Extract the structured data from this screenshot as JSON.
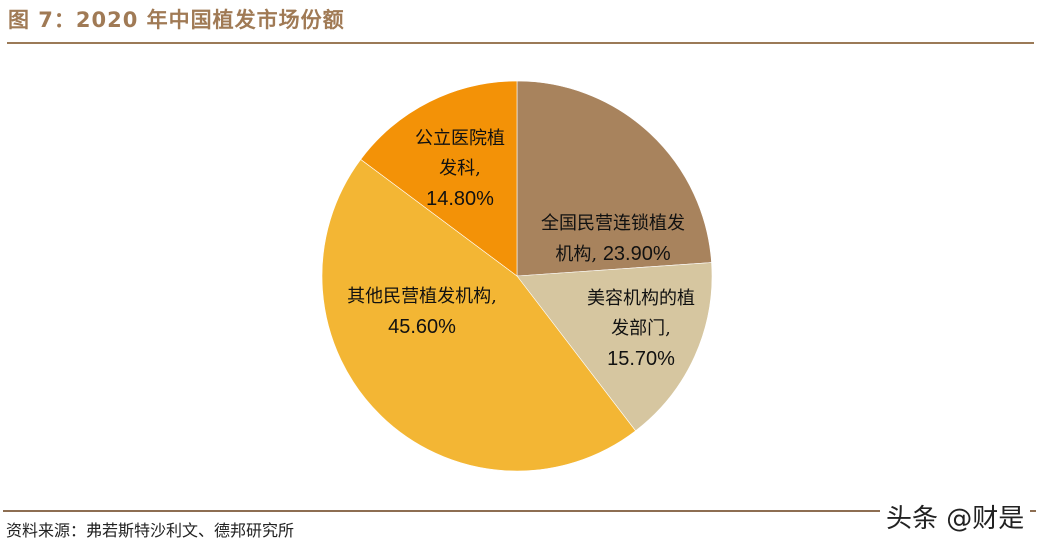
{
  "header": {
    "title": "图 7：2020 年中国植发市场份额"
  },
  "footer": {
    "source": "资料来源：弗若斯特沙利文、德邦研究所",
    "watermark": "头条 @财是"
  },
  "colors": {
    "accent": "#9b7a57",
    "slice_1": "#a8835d",
    "slice_2": "#d6c6a0",
    "slice_3": "#f3b634",
    "slice_4": "#f39207"
  },
  "chart_data": {
    "type": "pie",
    "title": "2020 年中国植发市场份额",
    "start_angle": "12 o'clock",
    "direction": "clockwise",
    "legend": "none (inline labels)",
    "categories": [
      "全国民营连锁植发机构",
      "美容机构的植发部门",
      "其他民营植发机构",
      "公立医院植发科"
    ],
    "values": [
      23.9,
      15.7,
      45.6,
      14.8
    ],
    "unit": "%",
    "colors": [
      "#a8835d",
      "#d6c6a0",
      "#f3b634",
      "#f39207"
    ]
  },
  "labels": [
    {
      "line1": "全国民营连锁植发",
      "line2": "机构,",
      "pct": "23.90%"
    },
    {
      "line1": "美容机构的植",
      "line2": "发部门,",
      "pct": "15.70%"
    },
    {
      "line1": "其他民营植发机构,",
      "pct": "45.60%"
    },
    {
      "line1": "公立医院植",
      "line2": "发科,",
      "pct": "14.80%"
    }
  ]
}
